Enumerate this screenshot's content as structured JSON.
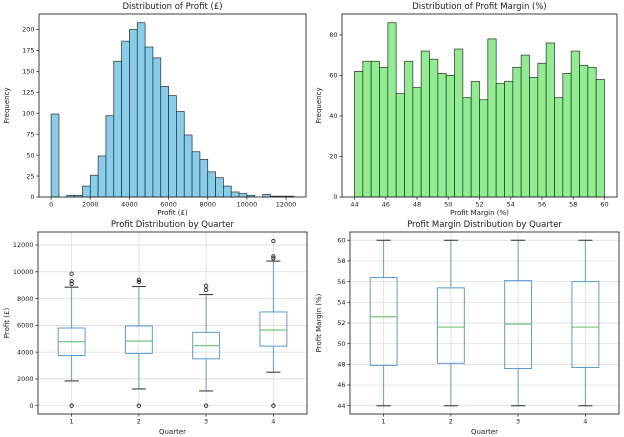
{
  "page": {
    "background": "#ffffff"
  },
  "chart_data": [
    {
      "type": "bar",
      "subtype": "histogram",
      "title": "Distribution of Profit (£)",
      "xlabel": "Profit (£)",
      "ylabel": "Frequency",
      "bin_start": 0,
      "bin_width": 400,
      "values": [
        99,
        0,
        2,
        2,
        13,
        26,
        49,
        97,
        162,
        186,
        200,
        208,
        179,
        166,
        132,
        121,
        102,
        74,
        54,
        45,
        30,
        23,
        13,
        6,
        4,
        2,
        0,
        3,
        1,
        1,
        1
      ],
      "xticks": [
        0,
        2000,
        4000,
        6000,
        8000,
        10000,
        12000
      ],
      "yticks": [
        0,
        25,
        50,
        75,
        100,
        125,
        150,
        175,
        200
      ],
      "xlim": [
        -620,
        13020
      ],
      "ylim": [
        0,
        218.4
      ],
      "bar_color": "#87CEEB",
      "edge_color": "#2b2b2b",
      "grid": false,
      "legend": "none"
    },
    {
      "type": "bar",
      "subtype": "histogram",
      "title": "Distribution of Profit Margin (%)",
      "xlabel": "Profit Margin (%)",
      "ylabel": "Frequency",
      "bin_start": 44,
      "bin_width": 0.53333,
      "values": [
        62,
        67,
        67,
        64,
        86,
        51,
        67,
        54,
        72,
        68,
        61,
        60,
        73,
        49,
        57,
        48,
        78,
        56,
        57,
        64,
        70,
        59,
        66,
        76,
        49,
        61,
        72,
        65,
        64,
        58
      ],
      "xticks": [
        44,
        46,
        48,
        50,
        52,
        54,
        56,
        58,
        60
      ],
      "yticks": [
        0,
        20,
        40,
        60,
        80
      ],
      "xlim": [
        43.2,
        60.8
      ],
      "ylim": [
        0,
        90.3
      ],
      "bar_color": "#90EE90",
      "edge_color": "#2b2b2b",
      "grid": false,
      "legend": "none"
    },
    {
      "type": "box",
      "title": "Profit Distribution by Quarter",
      "xlabel": "Quarter",
      "ylabel": "Profit (£)",
      "categories": [
        "1",
        "2",
        "3",
        "4"
      ],
      "boxes": [
        {
          "whislo": 1850,
          "q1": 3750,
          "med": 4780,
          "q3": 5800,
          "whishi": 8850,
          "fliers": [
            9100,
            9300,
            9850,
            0
          ]
        },
        {
          "whislo": 1250,
          "q1": 3900,
          "med": 4830,
          "q3": 5950,
          "whishi": 8900,
          "fliers": [
            9250,
            9400,
            0
          ]
        },
        {
          "whislo": 1100,
          "q1": 3500,
          "med": 4480,
          "q3": 5480,
          "whishi": 8300,
          "fliers": [
            8650,
            8950,
            0
          ]
        },
        {
          "whislo": 2500,
          "q1": 4450,
          "med": 5650,
          "q3": 7000,
          "whishi": 10800,
          "fliers": [
            11000,
            11150,
            12300,
            0
          ]
        }
      ],
      "yticks": [
        0,
        2000,
        4000,
        6000,
        8000,
        10000,
        12000
      ],
      "xlim": [
        0.5,
        4.5
      ],
      "ylim": [
        -620,
        12970
      ],
      "box_color": "#5b9bd5",
      "median_color": "#69bf6b",
      "cap_color": "#3c3c3c",
      "flier_color": "#2b2b2b",
      "grid": true,
      "legend": "none"
    },
    {
      "type": "box",
      "title": "Profit Margin Distribution by Quarter",
      "xlabel": "Quarter",
      "ylabel": "Profit Margin (%)",
      "categories": [
        "1",
        "2",
        "3",
        "4"
      ],
      "boxes": [
        {
          "whislo": 44.0,
          "q1": 47.9,
          "med": 52.6,
          "q3": 56.4,
          "whishi": 60.0,
          "fliers": []
        },
        {
          "whislo": 44.0,
          "q1": 48.1,
          "med": 51.6,
          "q3": 55.4,
          "whishi": 60.0,
          "fliers": []
        },
        {
          "whislo": 44.0,
          "q1": 47.6,
          "med": 51.9,
          "q3": 56.1,
          "whishi": 60.0,
          "fliers": []
        },
        {
          "whislo": 44.0,
          "q1": 47.7,
          "med": 51.6,
          "q3": 56.0,
          "whishi": 60.0,
          "fliers": []
        }
      ],
      "yticks": [
        44,
        46,
        48,
        50,
        52,
        54,
        56,
        58,
        60
      ],
      "xlim": [
        0.5,
        4.5
      ],
      "ylim": [
        43.2,
        60.8
      ],
      "box_color": "#5b9bd5",
      "median_color": "#69bf6b",
      "cap_color": "#3c3c3c",
      "flier_color": "#2b2b2b",
      "grid": true,
      "legend": "none"
    }
  ]
}
